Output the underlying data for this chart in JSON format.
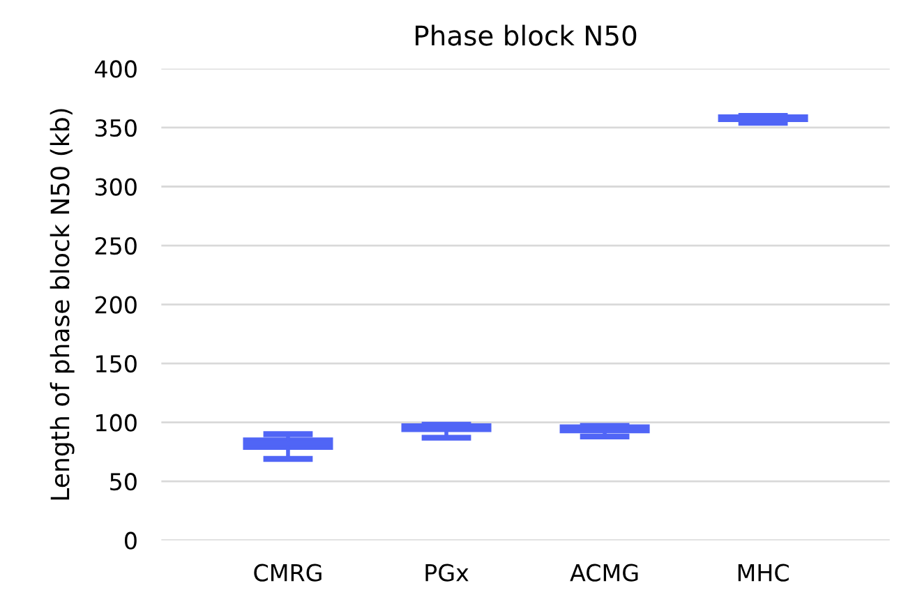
{
  "chart_data": {
    "type": "box",
    "title": "Phase block N50",
    "ylabel": "Length of phase block N50 (kb)",
    "categories": [
      "CMRG",
      "PGx",
      "ACMG",
      "MHC"
    ],
    "color": "#5065f6",
    "boxes": [
      {
        "low": 69,
        "q1": 78,
        "median": 82,
        "q3": 86,
        "high": 90
      },
      {
        "low": 87,
        "q1": 93,
        "median": 95,
        "q3": 98,
        "high": 98
      },
      {
        "low": 88,
        "q1": 92,
        "median": 94,
        "q3": 97,
        "high": 97
      },
      {
        "low": 354,
        "q1": 356,
        "median": 358,
        "q3": 360,
        "high": 360
      }
    ],
    "ylim": [
      0,
      400
    ],
    "yticks": [
      0,
      50,
      100,
      150,
      200,
      250,
      300,
      350,
      400
    ],
    "grid": "y"
  }
}
